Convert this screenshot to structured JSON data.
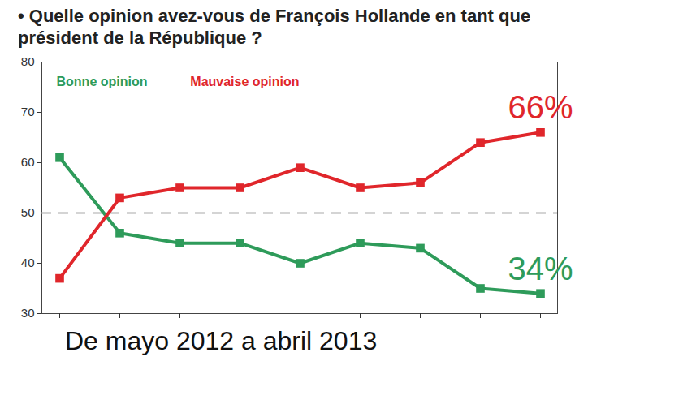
{
  "chart_data": {
    "type": "line",
    "title": "• Quelle opinion avez-vous de François Hollande en tant que président de la République ?",
    "xlabel": "De mayo 2012 a abril 2013",
    "categories": [
      null,
      null,
      null,
      null,
      null,
      null,
      null,
      null,
      null
    ],
    "series": [
      {
        "name": "Bonne opinion",
        "color": "#2e9b5a",
        "marker": "square",
        "values": [
          61,
          46,
          44,
          44,
          40,
          44,
          43,
          35,
          34
        ],
        "value_labels": [
          null,
          null,
          null,
          null,
          null,
          null,
          null,
          null,
          "34%"
        ]
      },
      {
        "name": "Mauvaise opinion",
        "color": "#e0262b",
        "marker": "square",
        "values": [
          37,
          53,
          55,
          55,
          59,
          55,
          56,
          64,
          66
        ],
        "value_labels": [
          null,
          null,
          null,
          null,
          null,
          null,
          null,
          null,
          "66%"
        ]
      }
    ],
    "threshold": 50,
    "ylim": [
      30,
      80
    ],
    "yticks": [
      30,
      40,
      50,
      60,
      70,
      80
    ],
    "legend": "top-left",
    "grid": false
  }
}
